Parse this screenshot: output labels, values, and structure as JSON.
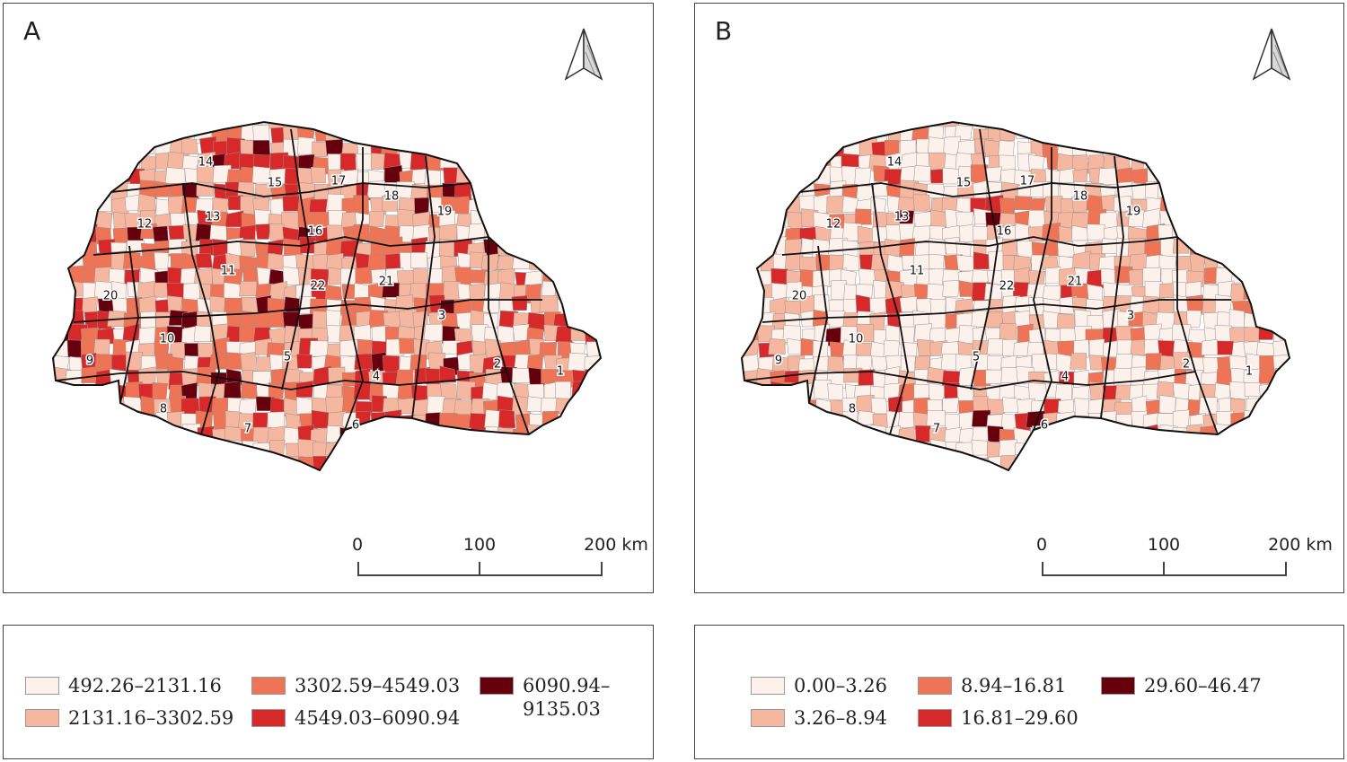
{
  "panels": [
    {
      "letter": "A",
      "scale": {
        "labels": [
          "0",
          "100",
          "200 km"
        ]
      },
      "north_arrow": "north-arrow-icon",
      "region_labels": [
        "1",
        "2",
        "3",
        "4",
        "5",
        "6",
        "7",
        "8",
        "9",
        "10",
        "11",
        "12",
        "13",
        "14",
        "15",
        "16",
        "17",
        "18",
        "19",
        "20",
        "21",
        "22"
      ],
      "legend": [
        {
          "label": "492.26–2131.16",
          "color": "#fdf1ec"
        },
        {
          "label": "2131.16–3302.59",
          "color": "#f5b79f"
        },
        {
          "label": "3302.59–4549.03",
          "color": "#ee7455"
        },
        {
          "label": "4549.03–6090.94",
          "color": "#d7282a"
        },
        {
          "label": "6090.94–\n9135.03",
          "color": "#67000d"
        }
      ]
    },
    {
      "letter": "B",
      "scale": {
        "labels": [
          "0",
          "100",
          "200 km"
        ]
      },
      "north_arrow": "north-arrow-icon",
      "region_labels": [
        "1",
        "2",
        "3",
        "4",
        "5",
        "6",
        "7",
        "8",
        "9",
        "10",
        "11",
        "12",
        "13",
        "14",
        "15",
        "16",
        "17",
        "18",
        "19",
        "20",
        "21",
        "22"
      ],
      "legend": [
        {
          "label": "0.00–3.26",
          "color": "#fdf1ec"
        },
        {
          "label": "3.26–8.94",
          "color": "#f5b79f"
        },
        {
          "label": "8.94–16.81",
          "color": "#ee7455"
        },
        {
          "label": "16.81–29.60",
          "color": "#d7282a"
        },
        {
          "label": "29.60–46.47",
          "color": "#67000d"
        }
      ]
    }
  ]
}
